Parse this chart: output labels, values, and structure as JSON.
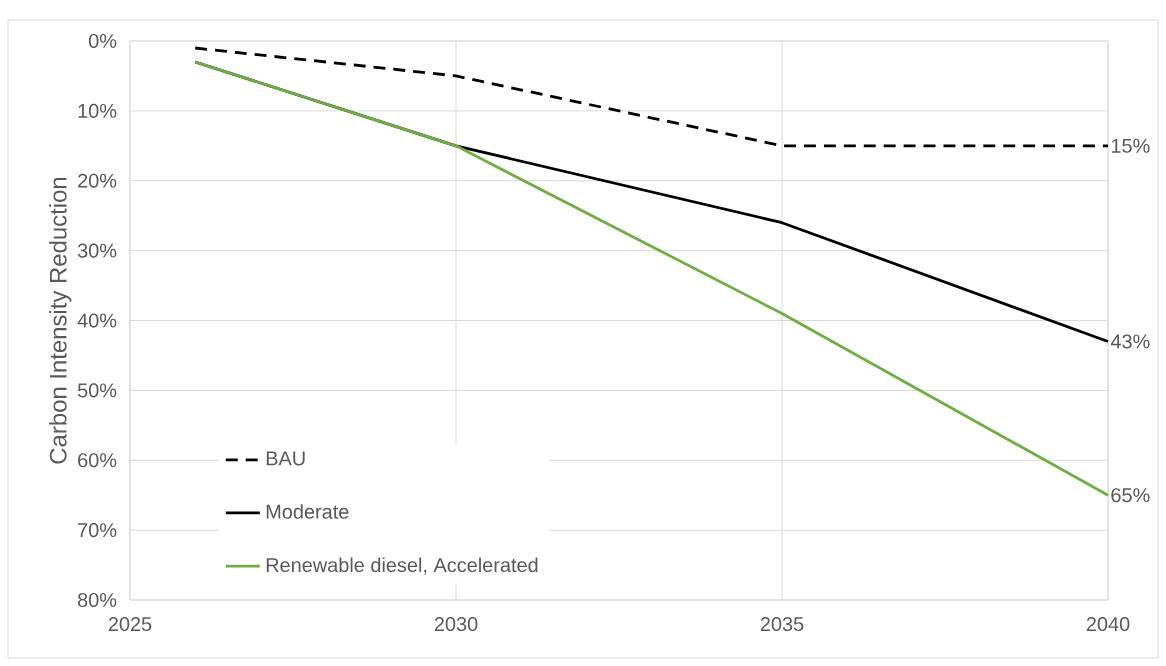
{
  "chart_data": {
    "type": "line",
    "ylabel": "Carbon Intensity Reduction",
    "x": [
      2026,
      2030,
      2035,
      2040
    ],
    "series": [
      {
        "name": "BAU",
        "color": "#000000",
        "line_style": "dashed",
        "values": [
          1,
          5,
          15,
          15
        ],
        "value_labels": [
          null,
          null,
          null,
          "15%"
        ]
      },
      {
        "name": "Moderate",
        "color": "#000000",
        "line_style": "solid",
        "values": [
          3,
          15,
          26,
          43
        ],
        "value_labels": [
          null,
          null,
          null,
          "43%"
        ]
      },
      {
        "name": "Renewable diesel, Accelerated",
        "color": "#70ad47",
        "line_style": "solid",
        "values": [
          3,
          15,
          39,
          65
        ],
        "value_labels": [
          null,
          null,
          null,
          "65%"
        ]
      }
    ],
    "xlim": [
      2025,
      2040
    ],
    "xticks": [
      2025,
      2030,
      2035,
      2040
    ],
    "ylim": [
      80,
      0
    ],
    "yticks": [
      {
        "value": 0,
        "label": "0%"
      },
      {
        "value": 10,
        "label": "10%"
      },
      {
        "value": 20,
        "label": "20%"
      },
      {
        "value": 30,
        "label": "30%"
      },
      {
        "value": 40,
        "label": "40%"
      },
      {
        "value": 50,
        "label": "50%"
      },
      {
        "value": 60,
        "label": "60%"
      },
      {
        "value": 70,
        "label": "70%"
      },
      {
        "value": 80,
        "label": "80%"
      }
    ],
    "grid": true,
    "legend": "bottom left",
    "marker": "none"
  }
}
